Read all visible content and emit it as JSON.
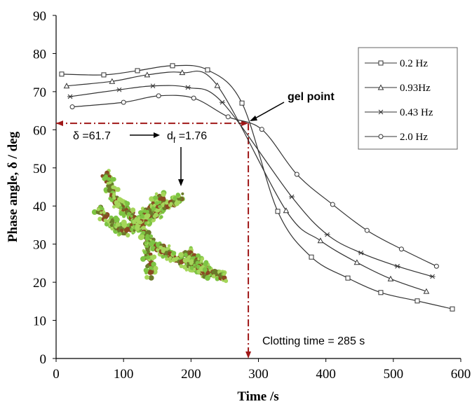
{
  "chart_data": {
    "type": "line",
    "xlabel": "Time /s",
    "ylabel": "Phase angle, δ / deg",
    "xlim": [
      0,
      600
    ],
    "xticks": [
      0,
      100,
      200,
      300,
      400,
      500,
      600
    ],
    "ylim": [
      0,
      90
    ],
    "yticks": [
      0,
      10,
      20,
      30,
      40,
      50,
      60,
      70,
      80,
      90
    ],
    "grid": false,
    "legend": "upper right",
    "series": [
      {
        "name": "0.2 Hz",
        "marker": "square",
        "color": "#333333",
        "x": [
          8.3,
          70.7,
          120.6,
          172.6,
          224.6,
          275.6,
          328.6,
          378.5,
          432.6,
          481.4,
          535.5,
          587.5
        ],
        "values": [
          74.6,
          74.4,
          75.5,
          76.8,
          75.7,
          67.0,
          38.6,
          26.6,
          21.1,
          17.3,
          15.1,
          13.0
        ]
      },
      {
        "name": "0.93Hz",
        "marker": "triangle",
        "color": "#333333",
        "x": [
          15.6,
          83,
          135,
          187,
          239,
          341,
          392,
          446,
          496,
          549
        ],
        "values": [
          71.5,
          72.7,
          74.4,
          75.0,
          71.6,
          38.8,
          30.9,
          25.2,
          20.9,
          17.6
        ]
      },
      {
        "name": "0.43 Hz",
        "marker": "star",
        "color": "#333333",
        "x": [
          20.8,
          93.6,
          143.5,
          195.5,
          246.4,
          349.4,
          402,
          452,
          506,
          558
        ],
        "values": [
          68.7,
          70.5,
          71.5,
          71.1,
          67.2,
          42.4,
          32.5,
          27.7,
          24.2,
          21.5
        ]
      },
      {
        "name": "2.0 Hz",
        "marker": "circle",
        "color": "#333333",
        "x": [
          24,
          100,
          152,
          204,
          255,
          305,
          357,
          410,
          461,
          512,
          564
        ],
        "values": [
          66.0,
          67.2,
          68.9,
          68.3,
          63.4,
          60.1,
          48.3,
          40.4,
          33.6,
          28.7,
          24.2
        ]
      }
    ],
    "gel_point": {
      "x": 285,
      "y": 61.7,
      "label": "gel point"
    },
    "delta_label": "δ =61.7",
    "df_label": {
      "main": "d",
      "sub": "f",
      "rest": " =1.76"
    },
    "clotting_label": "Clotting time = 285 s"
  }
}
